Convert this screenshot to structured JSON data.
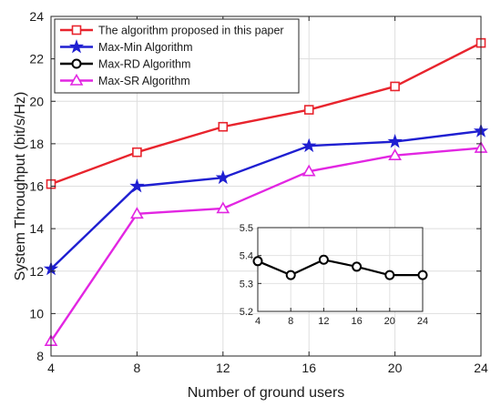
{
  "chart_data": {
    "type": "line",
    "title": "",
    "xlabel": "Number of ground users",
    "ylabel": "System Throughput (bit/s/Hz)",
    "xlim": [
      4,
      24
    ],
    "ylim": [
      8,
      24
    ],
    "xticks": [
      4,
      8,
      12,
      16,
      20,
      24
    ],
    "yticks": [
      8,
      10,
      12,
      14,
      16,
      18,
      20,
      22,
      24
    ],
    "grid": true,
    "legend_position": "top-left",
    "x": [
      4,
      8,
      12,
      16,
      20,
      24
    ],
    "series": [
      {
        "name": "The algorithm proposed in this paper",
        "values": [
          16.1,
          17.6,
          18.8,
          19.6,
          20.7,
          22.75
        ],
        "color": "#e8242d",
        "marker": "square"
      },
      {
        "name": "Max-Min Algorithm",
        "values": [
          12.1,
          16.0,
          16.4,
          17.9,
          18.1,
          18.6
        ],
        "color": "#1f1fd1",
        "marker": "star"
      },
      {
        "name": "Max-RD Algorithm",
        "values": [
          5.38,
          5.33,
          5.385,
          5.36,
          5.33,
          5.33
        ],
        "color": "#000000",
        "marker": "circle",
        "shown_in": "inset"
      },
      {
        "name": "Max-SR Algorithm",
        "values": [
          8.7,
          14.7,
          14.95,
          16.7,
          17.45,
          17.8
        ],
        "color": "#e226e2",
        "marker": "triangle"
      }
    ],
    "inset": {
      "xlim": [
        4,
        24
      ],
      "ylim": [
        5.2,
        5.5
      ],
      "xticks": [
        4,
        8,
        12,
        16,
        20,
        24
      ],
      "yticks": [
        5.2,
        5.3,
        5.4,
        5.5
      ],
      "series_name": "Max-RD Algorithm"
    }
  }
}
